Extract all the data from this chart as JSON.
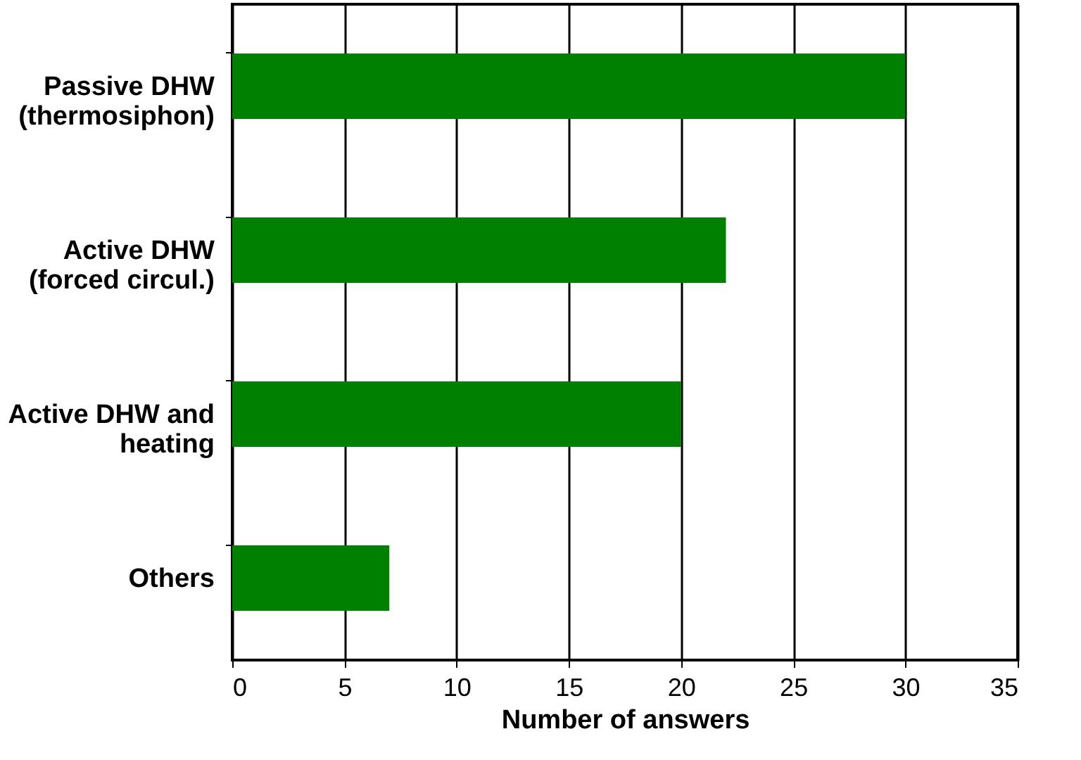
{
  "chart_data": {
    "type": "bar",
    "orientation": "horizontal",
    "xlabel": "Number of answers",
    "categories": [
      "Passive DHW\n(thermosiphon)",
      "Active DHW\n(forced circul.)",
      "Active DHW and\nheating",
      "Others"
    ],
    "values": [
      30,
      22,
      20,
      7
    ],
    "color": "#008000",
    "xlim": [
      0,
      35
    ],
    "xticks": [
      0,
      5,
      10,
      15,
      20,
      25,
      30,
      35
    ],
    "grid": "x"
  }
}
